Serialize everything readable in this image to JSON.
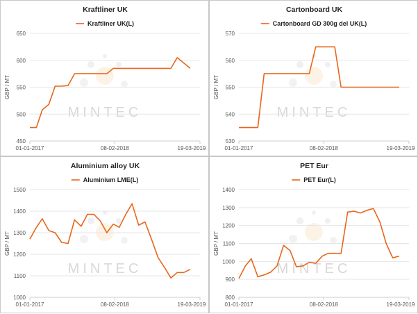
{
  "colors": {
    "series": "#e8661c",
    "grid": "#e6e6e6",
    "axis": "#cccccc",
    "watermark": "#d8d8d8"
  },
  "watermark": "MINTEC",
  "chart_data": [
    {
      "type": "line",
      "title": "Kraftliner UK",
      "ylabel": "GBP / MT",
      "ylim": [
        450,
        650
      ],
      "yticks": [
        450,
        500,
        550,
        600,
        650
      ],
      "xlim": [
        "2017-01-01",
        "2019-03-19"
      ],
      "xticks": [
        "01-01-2017",
        "08-02-2018",
        "19-03-2019"
      ],
      "legend": "top-center",
      "series": [
        {
          "name": "Kraftliner UK(L)",
          "x": [
            "2017-01-01",
            "2017-02-01",
            "2017-03-01",
            "2017-04-01",
            "2017-05-01",
            "2017-06-01",
            "2017-07-01",
            "2017-08-01",
            "2017-09-01",
            "2017-10-01",
            "2017-11-01",
            "2017-12-01",
            "2018-01-01",
            "2018-02-01",
            "2018-03-01",
            "2018-04-01",
            "2018-05-01",
            "2018-06-01",
            "2018-07-01",
            "2018-08-01",
            "2018-09-01",
            "2018-10-01",
            "2018-11-01",
            "2018-12-01",
            "2019-01-01",
            "2019-02-01"
          ],
          "values": [
            475,
            475,
            508,
            518,
            552,
            552,
            553,
            575,
            575,
            575,
            575,
            575,
            575,
            585,
            585,
            585,
            585,
            585,
            585,
            585,
            585,
            585,
            585,
            605,
            595,
            585
          ]
        }
      ]
    },
    {
      "type": "line",
      "title": "Cartonboard UK",
      "ylabel": "GBP / MT",
      "ylim": [
        530,
        570
      ],
      "yticks": [
        530,
        540,
        550,
        560,
        570
      ],
      "xlim": [
        "2017-01-01",
        "2019-03-19"
      ],
      "xticks": [
        "01-01-2017",
        "08-02-2018",
        "19-03-2019"
      ],
      "legend": "top-center",
      "series": [
        {
          "name": "Cartonboard GD 300g del UK(L)",
          "x": [
            "2017-01-01",
            "2017-02-01",
            "2017-03-01",
            "2017-04-01",
            "2017-05-01",
            "2017-06-01",
            "2017-07-01",
            "2017-08-01",
            "2017-09-01",
            "2017-10-01",
            "2017-11-01",
            "2017-12-01",
            "2018-01-01",
            "2018-02-01",
            "2018-03-01",
            "2018-04-01",
            "2018-05-01",
            "2018-06-01",
            "2018-07-01",
            "2018-08-01",
            "2018-09-01",
            "2018-10-01",
            "2018-11-01",
            "2018-12-01",
            "2019-01-01",
            "2019-02-01"
          ],
          "values": [
            535,
            535,
            535,
            535,
            555,
            555,
            555,
            555,
            555,
            555,
            555,
            555,
            565,
            565,
            565,
            565,
            550,
            550,
            550,
            550,
            550,
            550,
            550,
            550,
            550,
            550
          ]
        }
      ]
    },
    {
      "type": "line",
      "title": "Aluminium alloy UK",
      "ylabel": "GBP / MT",
      "ylim": [
        1000,
        1500
      ],
      "yticks": [
        1000,
        1100,
        1200,
        1300,
        1400,
        1500
      ],
      "xlim": [
        "2017-01-01",
        "2019-03-19"
      ],
      "xticks": [
        "01-01-2017",
        "08-02-2018",
        "19-03-2019"
      ],
      "legend": "top-center",
      "series": [
        {
          "name": "Aluminium LME(L)",
          "x": [
            "2017-01-01",
            "2017-02-01",
            "2017-03-01",
            "2017-04-01",
            "2017-05-01",
            "2017-06-01",
            "2017-07-01",
            "2017-08-01",
            "2017-09-01",
            "2017-10-01",
            "2017-11-01",
            "2017-12-01",
            "2018-01-01",
            "2018-02-01",
            "2018-03-01",
            "2018-04-01",
            "2018-05-01",
            "2018-06-01",
            "2018-07-01",
            "2018-08-01",
            "2018-09-01",
            "2018-10-01",
            "2018-11-01",
            "2018-12-01",
            "2019-01-01",
            "2019-02-01"
          ],
          "values": [
            1270,
            1325,
            1365,
            1310,
            1300,
            1255,
            1250,
            1360,
            1330,
            1385,
            1385,
            1355,
            1300,
            1340,
            1325,
            1385,
            1435,
            1335,
            1350,
            1270,
            1185,
            1140,
            1090,
            1115,
            1115,
            1130
          ]
        }
      ]
    },
    {
      "type": "line",
      "title": "PET Eur",
      "ylabel": "GBP / MT",
      "ylim": [
        800,
        1400
      ],
      "yticks": [
        800,
        900,
        1000,
        1100,
        1200,
        1300,
        1400
      ],
      "xlim": [
        "2017-01-01",
        "2019-03-19"
      ],
      "xticks": [
        "01-01-2017",
        "08-02-2018",
        "19-03-2019"
      ],
      "legend": "top-center",
      "series": [
        {
          "name": "PET Eur(L)",
          "x": [
            "2017-01-01",
            "2017-02-01",
            "2017-03-01",
            "2017-04-01",
            "2017-05-01",
            "2017-06-01",
            "2017-07-01",
            "2017-08-01",
            "2017-09-01",
            "2017-10-01",
            "2017-11-01",
            "2017-12-01",
            "2018-01-01",
            "2018-02-01",
            "2018-03-01",
            "2018-04-01",
            "2018-05-01",
            "2018-06-01",
            "2018-07-01",
            "2018-08-01",
            "2018-09-01",
            "2018-10-01",
            "2018-11-01",
            "2018-12-01",
            "2019-01-01",
            "2019-02-01"
          ],
          "values": [
            905,
            975,
            1015,
            915,
            925,
            940,
            975,
            1090,
            1060,
            970,
            975,
            995,
            990,
            1030,
            1045,
            1045,
            1045,
            1275,
            1280,
            1270,
            1285,
            1295,
            1220,
            1100,
            1020,
            1030
          ]
        }
      ]
    }
  ]
}
